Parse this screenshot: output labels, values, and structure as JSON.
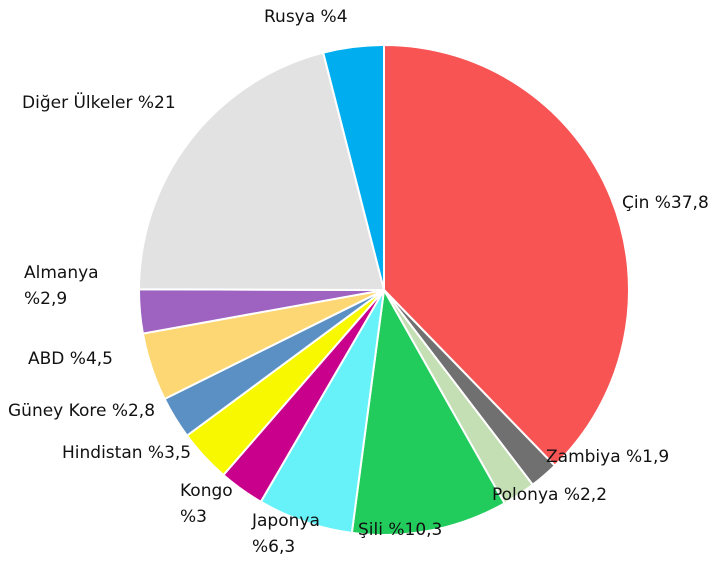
{
  "chart_data": {
    "type": "pie",
    "slices": [
      {
        "label": "Çin %37,8",
        "value": 37.8,
        "color": "#f85454"
      },
      {
        "label": "Zambiya %1,9",
        "value": 1.9,
        "color": "#707070"
      },
      {
        "label": "Polonya %2,2",
        "value": 2.2,
        "color": "#c5dfb4"
      },
      {
        "label": "Şili %10,3",
        "value": 10.3,
        "color": "#22cc5c"
      },
      {
        "label": "Japonya %6,3",
        "value": 6.3,
        "color": "#66f2f8"
      },
      {
        "label": "Kongo %3",
        "value": 3.0,
        "color": "#c8008c"
      },
      {
        "label": "Hindistan %3,5",
        "value": 3.5,
        "color": "#f8f800"
      },
      {
        "label": "Güney Kore %2,8",
        "value": 2.8,
        "color": "#5a90c4"
      },
      {
        "label": "ABD %4,5",
        "value": 4.5,
        "color": "#fcd774"
      },
      {
        "label": "Almanya %2,9",
        "value": 2.9,
        "color": "#9e62c0"
      },
      {
        "label": "Diğer Ülkeler %21",
        "value": 21.0,
        "color": "#e2e2e2"
      },
      {
        "label": "Rusya %4",
        "value": 4.0,
        "color": "#00aeef"
      }
    ]
  }
}
